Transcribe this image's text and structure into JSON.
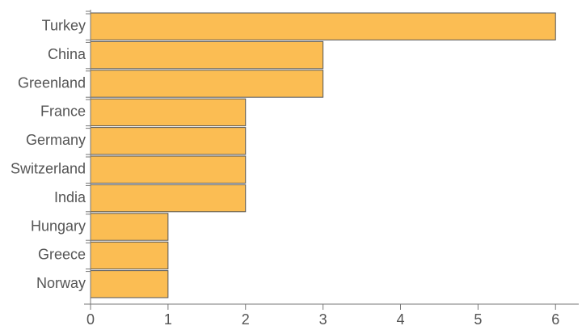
{
  "chart_data": {
    "type": "barh",
    "categories": [
      "Turkey",
      "China",
      "Greenland",
      "France",
      "Germany",
      "Switzerland",
      "India",
      "Hungary",
      "Greece",
      "Norway"
    ],
    "values": [
      6,
      3,
      3,
      2,
      2,
      2,
      2,
      1,
      1,
      1
    ],
    "color": "#fbbd53",
    "xlim": [
      0,
      6.3
    ],
    "xticks": [
      0,
      1,
      2,
      3,
      4,
      5,
      6
    ]
  }
}
